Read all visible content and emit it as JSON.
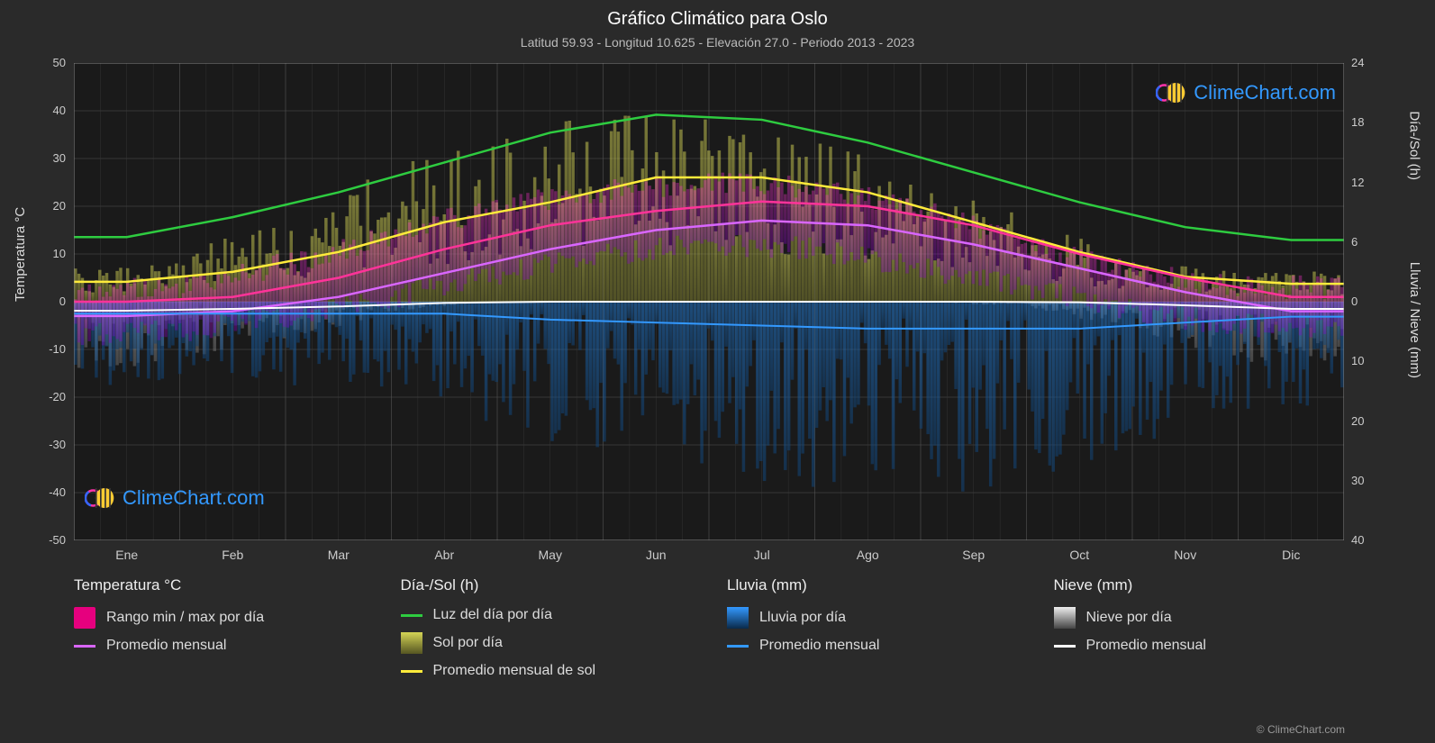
{
  "title": "Gráfico Climático para Oslo",
  "subtitle": "Latitud 59.93 - Longitud 10.625 - Elevación 27.0 - Periodo 2013 - 2023",
  "brand": "ClimeChart.com",
  "copyright": "© ClimeChart.com",
  "chart": {
    "type": "climatogram",
    "background_color": "#2a2a2a",
    "plot_background": "#1a1a1a",
    "grid_color": "#555555",
    "grid_minor_color": "#3a3a3a",
    "axis_left": {
      "label": "Temperatura °C",
      "min": -50,
      "max": 50,
      "step": 10,
      "ticks": [
        50,
        40,
        30,
        20,
        10,
        0,
        -10,
        -20,
        -30,
        -40,
        -50
      ]
    },
    "axis_right_top": {
      "label": "Día-/Sol (h)",
      "min": 0,
      "max": 24,
      "step": 6,
      "ticks": [
        24,
        18,
        12,
        6,
        0
      ]
    },
    "axis_right_bottom": {
      "label": "Lluvia / Nieve (mm)",
      "min": 0,
      "max": 40,
      "step": 10,
      "ticks": [
        0,
        10,
        20,
        30,
        40
      ]
    },
    "months": [
      "Ene",
      "Feb",
      "Mar",
      "Abr",
      "May",
      "Jun",
      "Jul",
      "Ago",
      "Sep",
      "Oct",
      "Nov",
      "Dic"
    ],
    "series": {
      "daylight": {
        "color": "#2ecc40",
        "stroke_width": 2.5,
        "values_hours": [
          6.5,
          8.5,
          11,
          14,
          17,
          18.8,
          18.3,
          16,
          13,
          10,
          7.5,
          6.2
        ]
      },
      "sun_monthly": {
        "color": "#ffeb3b",
        "stroke_width": 2.5,
        "values_hours": [
          2,
          3,
          5,
          8,
          10,
          12.5,
          12.5,
          11,
          8,
          5,
          2.5,
          1.8
        ]
      },
      "temp_max": {
        "color": "#ff3399",
        "stroke_width": 2.5,
        "values_c": [
          0,
          1,
          5,
          11,
          16,
          19,
          21,
          20,
          16,
          10,
          5,
          1
        ]
      },
      "temp_avg": {
        "color": "#d966ff",
        "stroke_width": 2.5,
        "values_c": [
          -3,
          -2,
          1,
          6,
          11,
          15,
          17,
          16,
          12,
          7,
          2,
          -2
        ]
      },
      "temp_min_env": {
        "color_top": "#ff33cc",
        "color_bottom": "#8800cc",
        "values_min_c": [
          -7,
          -6,
          -3,
          1,
          6,
          10,
          12,
          11,
          7,
          3,
          -2,
          -5
        ],
        "values_max_c": [
          2,
          3,
          8,
          14,
          20,
          23,
          25,
          24,
          19,
          12,
          6,
          3
        ]
      },
      "rain_monthly": {
        "color": "#3399ff",
        "stroke_width": 2,
        "values_mm": [
          2,
          2,
          2,
          2,
          3,
          3.5,
          4,
          4.5,
          4.5,
          4.5,
          3.5,
          2.5
        ]
      },
      "snow_monthly": {
        "color": "#ffffff",
        "stroke_width": 2,
        "values_mm": [
          1.5,
          1.2,
          0.8,
          0.2,
          0,
          0,
          0,
          0,
          0,
          0.1,
          0.6,
          1.2
        ]
      },
      "sun_bars": {
        "color_top": "#d4d455",
        "color_bottom": "#888833",
        "opacity": 0.5
      },
      "rain_bars": {
        "color_top": "#2277cc",
        "color_bottom": "#114477",
        "opacity": 0.55
      },
      "snow_bars": {
        "color_top": "#dddddd",
        "color_bottom": "#888888",
        "opacity": 0.4
      },
      "temp_bars": {
        "color": "#cc33aa",
        "opacity": 0.35
      }
    }
  },
  "legend": {
    "columns": [
      {
        "title": "Temperatura °C",
        "items": [
          {
            "type": "box",
            "color": "#e6007e",
            "label": "Rango min / max por día"
          },
          {
            "type": "line",
            "color": "#d966ff",
            "label": "Promedio mensual"
          }
        ]
      },
      {
        "title": "Día-/Sol (h)",
        "items": [
          {
            "type": "line",
            "color": "#2ecc40",
            "label": "Luz del día por día"
          },
          {
            "type": "grad",
            "top": "#d4d455",
            "bot": "#555522",
            "label": "Sol por día"
          },
          {
            "type": "line",
            "color": "#ffeb3b",
            "label": "Promedio mensual de sol"
          }
        ]
      },
      {
        "title": "Lluvia (mm)",
        "items": [
          {
            "type": "grad",
            "top": "#3399ff",
            "bot": "#0a2a4a",
            "label": "Lluvia por día"
          },
          {
            "type": "line",
            "color": "#3399ff",
            "label": "Promedio mensual"
          }
        ]
      },
      {
        "title": "Nieve (mm)",
        "items": [
          {
            "type": "grad",
            "top": "#eeeeee",
            "bot": "#444444",
            "label": "Nieve por día"
          },
          {
            "type": "line",
            "color": "#ffffff",
            "label": "Promedio mensual"
          }
        ]
      }
    ]
  }
}
